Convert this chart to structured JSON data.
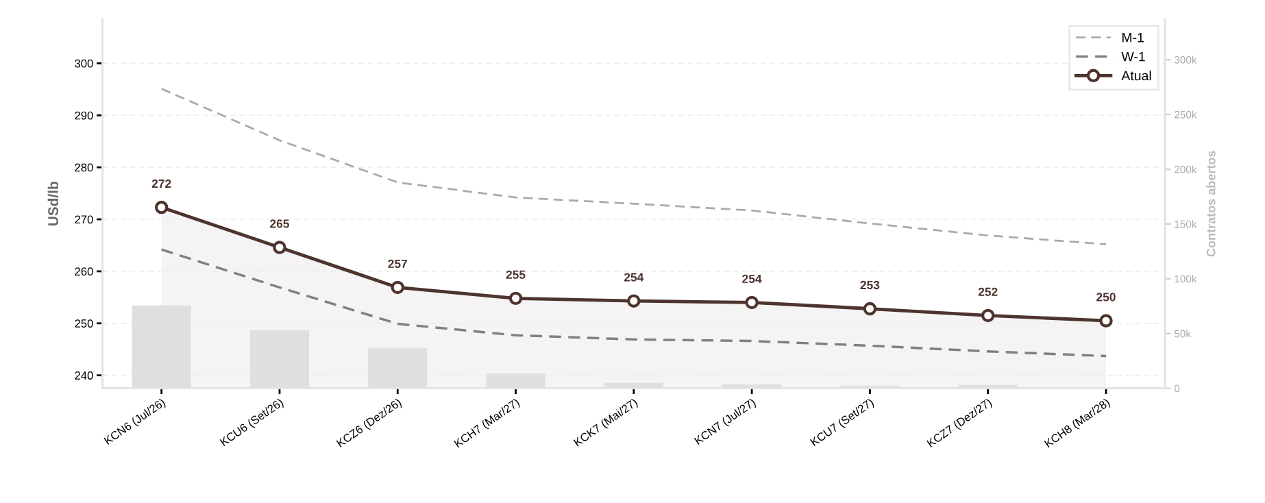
{
  "chart_data": {
    "type": "line",
    "categories": [
      "KCN6 (Jul/26)",
      "KCU6 (Set/26)",
      "KCZ6 (Dez/26)",
      "KCH7 (Mar/27)",
      "KCK7 (Mai/27)",
      "KCN7 (Jul/27)",
      "KCU7 (Set/27)",
      "KCZ7 (Dez/27)",
      "KCH8 (Mar/28)"
    ],
    "ylabel": "USd/lb",
    "y2label": "Contratos abertos",
    "ylim": [
      237.5,
      308.5
    ],
    "yticks": [
      240,
      250,
      260,
      270,
      280,
      290,
      300
    ],
    "y2lim": [
      0,
      337000
    ],
    "y2ticks": [
      {
        "value": 0,
        "label": "0"
      },
      {
        "value": 50000,
        "label": "50k"
      },
      {
        "value": 100000,
        "label": "100k"
      },
      {
        "value": 150000,
        "label": "150k"
      },
      {
        "value": 200000,
        "label": "200k"
      },
      {
        "value": 250000,
        "label": "250k"
      },
      {
        "value": 300000,
        "label": "300k"
      }
    ],
    "grid": "y",
    "legend": "top right",
    "series": [
      {
        "type": "bar",
        "axis": "y2",
        "color": "#e0dfde",
        "values": [
          75600,
          53000,
          37000,
          13500,
          5000,
          3500,
          2500,
          3000,
          0
        ]
      },
      {
        "name": "M-1",
        "color": "#aaaaaa",
        "line_style": "dashed",
        "marker": "none",
        "values": [
          295.1,
          285.2,
          277.1,
          274.2,
          273.0,
          271.7,
          269.2,
          266.9,
          265.2
        ]
      },
      {
        "name": "W-1",
        "color": "#808080",
        "line_style": "dashed",
        "marker": "none",
        "values": [
          264.2,
          256.9,
          249.9,
          247.7,
          246.9,
          246.6,
          245.7,
          244.6,
          243.7
        ]
      },
      {
        "name": "Atual",
        "color": "#4e342e",
        "line_style": "solid",
        "marker": "circle",
        "values": [
          272.3,
          264.6,
          256.9,
          254.8,
          254.3,
          254.0,
          252.8,
          251.5,
          250.5
        ],
        "lower": [
          237.5,
          237.5,
          237.5,
          237.5,
          237.5,
          237.5,
          237.5,
          237.5,
          237.5
        ],
        "upper": [
          272.3,
          264.6,
          256.9,
          254.8,
          254.3,
          254.0,
          252.8,
          251.5,
          250.5
        ],
        "value_labels": [
          "272",
          "265",
          "257",
          "255",
          "254",
          "254",
          "253",
          "252",
          "250"
        ]
      }
    ]
  }
}
